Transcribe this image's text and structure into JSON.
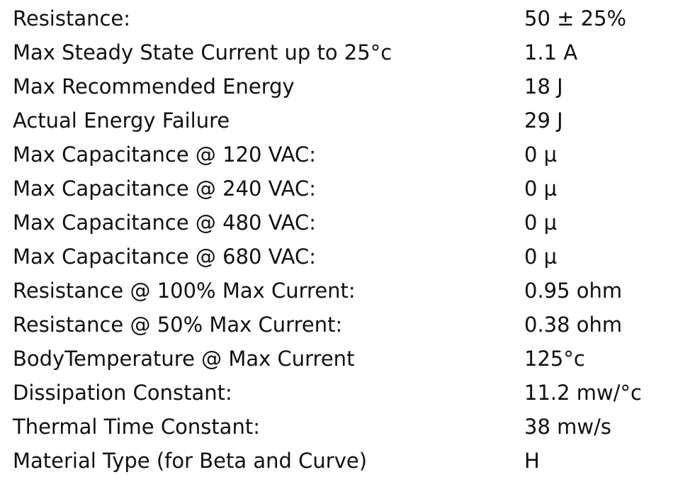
{
  "table": {
    "rows": [
      [
        "Resistance:",
        "50 ± 25%"
      ],
      [
        "Max Steady State Current up to 25°c",
        "1.1 A"
      ],
      [
        "Max Recommended Energy",
        "18 J"
      ],
      [
        "Actual Energy Failure",
        "29 J"
      ],
      [
        "Max Capacitance @ 120 VAC:",
        "0 µ"
      ],
      [
        "Max Capacitance @ 240 VAC:",
        "0 µ"
      ],
      [
        "Max Capacitance @ 480 VAC:",
        "0 µ"
      ],
      [
        "Max Capacitance @ 680 VAC:",
        "0 µ"
      ],
      [
        "Resistance @ 100% Max Current:",
        "0.95 ohm"
      ],
      [
        "Resistance @ 50% Max Current:",
        "0.38 ohm"
      ],
      [
        "BodyTemperature @ Max Current",
        "125°c"
      ],
      [
        "Dissipation Constant:",
        "11.2 mw/°c"
      ],
      [
        "Thermal Time Constant:",
        "38 mw/s"
      ],
      [
        "Material Type (for Beta and Curve)",
        "H"
      ]
    ]
  }
}
